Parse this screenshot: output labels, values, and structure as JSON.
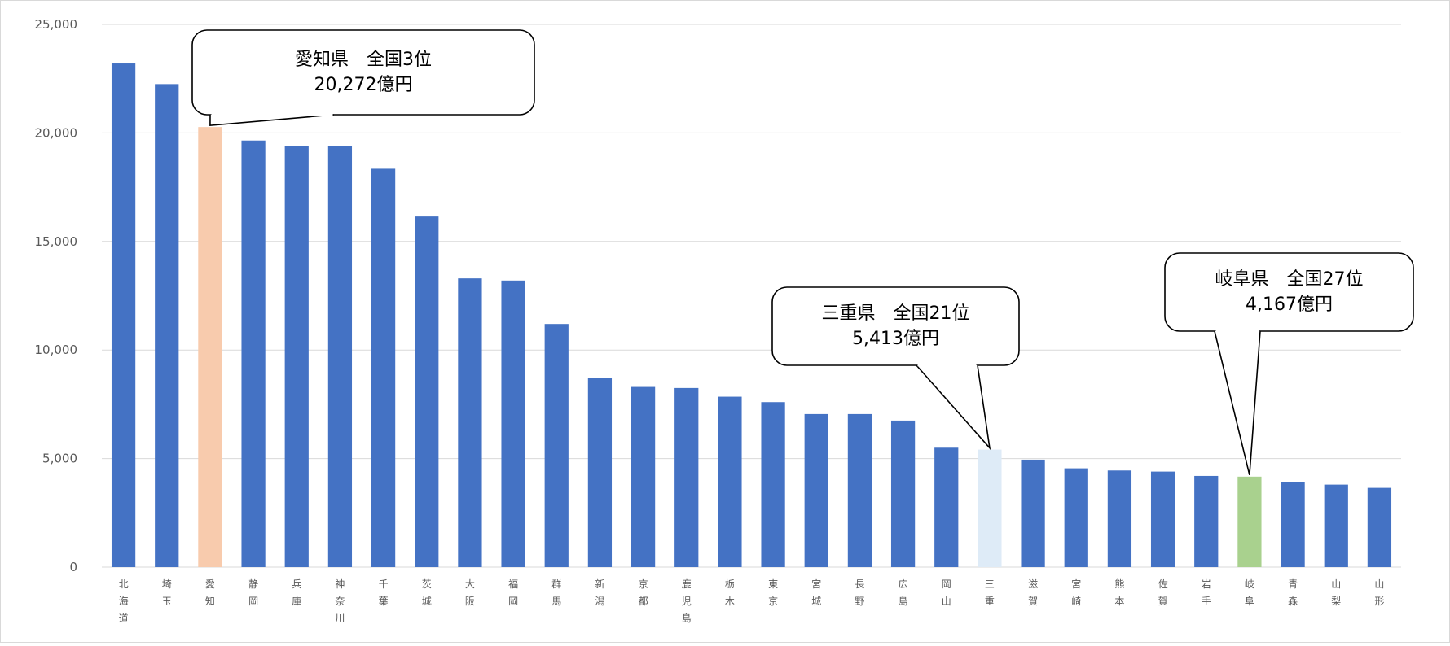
{
  "chart_data": {
    "type": "bar",
    "title": "",
    "xlabel": "",
    "ylabel": "",
    "ylim": [
      0,
      25000
    ],
    "yticks": [
      0,
      5000,
      10000,
      15000,
      20000,
      25000
    ],
    "ytick_labels": [
      "0",
      "5,000",
      "10,000",
      "15,000",
      "20,000",
      "25,000"
    ],
    "grid": true,
    "legend": "none",
    "categories": [
      "北海道",
      "埼玉",
      "愛知",
      "静岡",
      "兵庫",
      "神奈川",
      "千葉",
      "茨城",
      "大阪",
      "福岡",
      "群馬",
      "新潟",
      "京都",
      "鹿児島",
      "栃木",
      "東京",
      "宮城",
      "長野",
      "広島",
      "岡山",
      "三重",
      "滋賀",
      "宮崎",
      "熊本",
      "佐賀",
      "岩手",
      "岐阜",
      "青森",
      "山梨",
      "山形"
    ],
    "values": [
      23200,
      22250,
      20272,
      19650,
      19400,
      19400,
      18350,
      16150,
      13300,
      13200,
      11200,
      8700,
      8300,
      8250,
      7850,
      7600,
      7050,
      7050,
      6750,
      5500,
      5413,
      4950,
      4550,
      4450,
      4400,
      4200,
      4167,
      3900,
      3800,
      3650
    ],
    "colors": {
      "default": "#4472C4",
      "highlight": {
        "愛知": "#F8CBAD",
        "三重": "#DEEBF7",
        "岐阜": "#A9D18E"
      },
      "grid": "#D9D9D9",
      "axis_text": "#595959"
    },
    "annotations": [
      {
        "category": "愛知",
        "line1": "愛知県　全国3位",
        "line2": "20,272億円"
      },
      {
        "category": "三重",
        "line1": "三重県　全国21位",
        "line2": "5,413億円"
      },
      {
        "category": "岐阜",
        "line1": "岐阜県　全国27位",
        "line2": "4,167億円"
      }
    ]
  }
}
